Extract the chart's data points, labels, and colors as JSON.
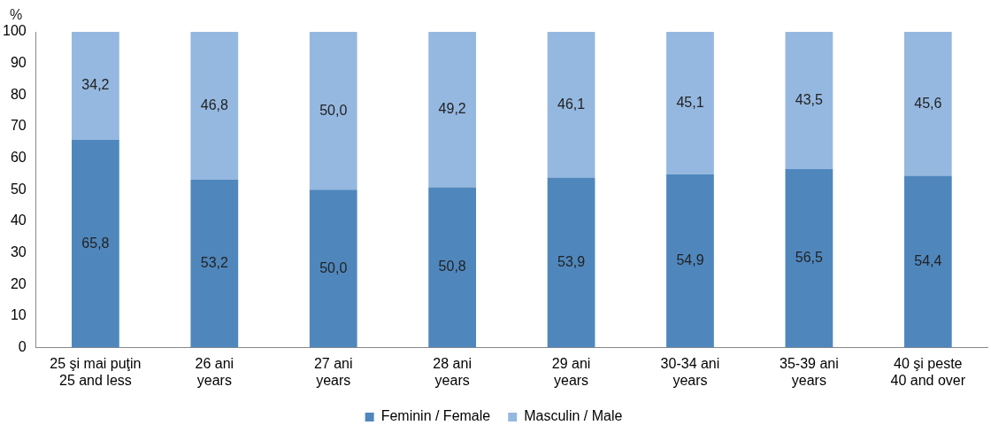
{
  "chart_data": {
    "type": "bar",
    "stacked": true,
    "ylabel": "%",
    "categories": [
      "25 şi mai puţin\n25 and less",
      "26 ani\nyears",
      "27 ani\nyears",
      "28 ani\nyears",
      "29 ani\nyears",
      "30-34 ani\nyears",
      "35-39 ani\nyears",
      "40 şi peste\n40 and over"
    ],
    "series": [
      {
        "name": "Feminin / Female",
        "color": "#4f87bd",
        "values": [
          65.8,
          53.2,
          50.0,
          50.8,
          53.9,
          54.9,
          56.5,
          54.4
        ],
        "value_labels": [
          "65,8",
          "53,2",
          "50,0",
          "50,8",
          "53,9",
          "54,9",
          "56,5",
          "54,4"
        ]
      },
      {
        "name": "Masculin / Male",
        "color": "#95b8e0",
        "values": [
          34.2,
          46.8,
          50.0,
          49.2,
          46.1,
          45.1,
          43.5,
          45.6
        ],
        "value_labels": [
          "34,2",
          "46,8",
          "50,0",
          "49,2",
          "46,1",
          "45,1",
          "43,5",
          "45,6"
        ]
      }
    ],
    "ylim": [
      0,
      100
    ],
    "yticks": [
      0,
      10,
      20,
      30,
      40,
      50,
      60,
      70,
      80,
      90,
      100
    ],
    "grid": false,
    "legend": "bottom"
  }
}
